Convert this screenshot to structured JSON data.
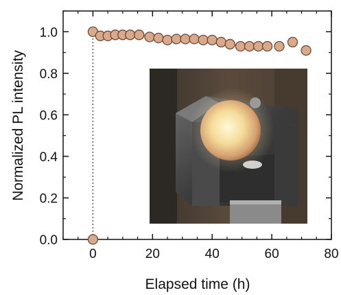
{
  "chart_data": {
    "type": "scatter",
    "xlabel": "Elapsed time (h)",
    "ylabel": "Normalized PL intensity",
    "xlim": [
      -10,
      80
    ],
    "ylim": [
      0,
      1.1
    ],
    "x_ticks": [
      0,
      20,
      40,
      60,
      80
    ],
    "y_ticks": [
      0.0,
      0.2,
      0.4,
      0.6,
      0.8,
      1.0
    ],
    "x_tick_labels": [
      "0",
      "20",
      "40",
      "60",
      "80"
    ],
    "y_tick_labels": [
      "0.0",
      "0.2",
      "0.4",
      "0.6",
      "0.8",
      "1.0"
    ],
    "marker_fill": "#d9a98a",
    "marker_edge": "#6b4a3a",
    "series": [
      {
        "x": [
          0,
          0,
          2.5,
          5,
          7.5,
          10,
          12.5,
          15.5,
          19,
          22,
          25,
          28,
          31,
          34,
          37,
          40,
          43,
          46,
          49.5,
          52.5,
          55.5,
          58.5,
          62.5,
          67,
          71.5
        ],
        "y": [
          0.0,
          1.0,
          0.98,
          0.98,
          0.985,
          0.985,
          0.985,
          0.985,
          0.975,
          0.97,
          0.96,
          0.965,
          0.965,
          0.965,
          0.96,
          0.96,
          0.95,
          0.94,
          0.93,
          0.93,
          0.93,
          0.93,
          0.93,
          0.95,
          0.91
        ]
      }
    ],
    "reference_line": {
      "x": 0,
      "style": "dotted"
    },
    "inset": {
      "kind": "photo",
      "subject": "glowing phosphor sphere in metal holder"
    }
  }
}
